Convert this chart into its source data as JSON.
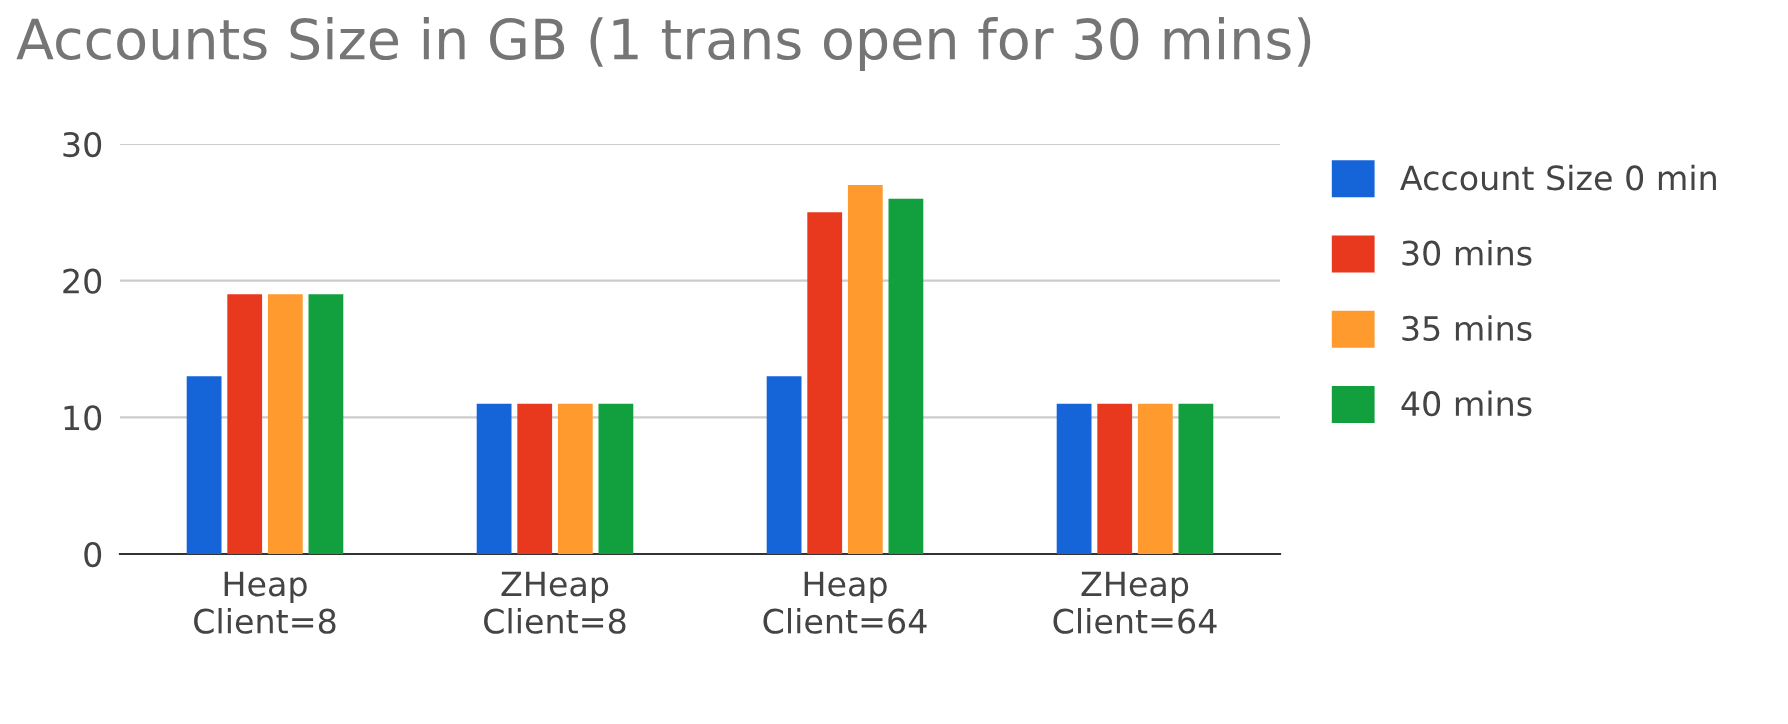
{
  "chart_data": {
    "type": "bar",
    "title": "Accounts Size in GB (1 trans open for 30 mins)",
    "categories": [
      "Heap\nClient=8",
      "ZHeap\nClient=8",
      "Heap\nClient=64",
      "ZHeap\nClient=64"
    ],
    "series": [
      {
        "name": "Account Size 0 min",
        "color": "#1565d8",
        "values": [
          13,
          11,
          13,
          11
        ]
      },
      {
        "name": "30 mins",
        "color": "#e8391e",
        "values": [
          19,
          11,
          25,
          11
        ]
      },
      {
        "name": "35 mins",
        "color": "#ff9a2e",
        "values": [
          19,
          11,
          27,
          11
        ]
      },
      {
        "name": "40 mins",
        "color": "#12a03e",
        "values": [
          19,
          11,
          26,
          11
        ]
      }
    ],
    "ylim": [
      0,
      30
    ],
    "yticks": [
      0,
      10,
      20,
      30
    ],
    "grid": "y",
    "legend": "top right"
  }
}
